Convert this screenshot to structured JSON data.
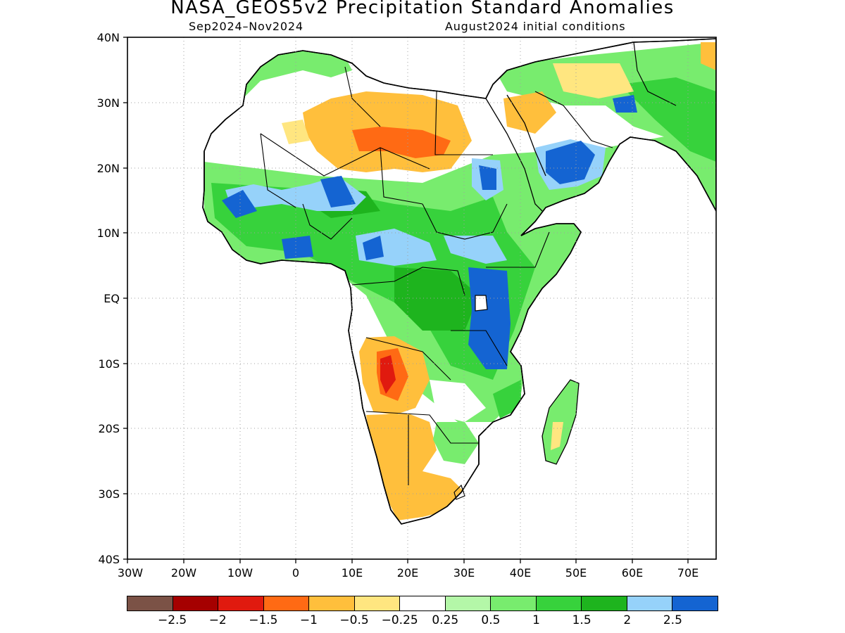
{
  "title": "NASA_GEOS5v2 Precipitation Standard Anomalies",
  "subtitle_left": "Sep2024–Nov2024",
  "subtitle_right": "August2024 initial conditions",
  "axes": {
    "lat_labels": [
      "40N",
      "30N",
      "20N",
      "10N",
      "EQ",
      "10S",
      "20S",
      "30S",
      "40S"
    ],
    "lon_labels": [
      "30W",
      "20W",
      "10W",
      "0",
      "10E",
      "20E",
      "30E",
      "40E",
      "50E",
      "60E",
      "70E"
    ],
    "lon_range": [
      -30,
      75
    ],
    "lat_range": [
      -40,
      40
    ],
    "grid": "dotted"
  },
  "colorbar": {
    "colors": [
      "#7b5246",
      "#a50000",
      "#e01a0f",
      "#ff6a14",
      "#ffbf3c",
      "#ffe680",
      "#ffffff",
      "#b4f7a8",
      "#78ec6e",
      "#37d23c",
      "#1eb41e",
      "#96d2fa",
      "#1464d2"
    ],
    "labels": [
      "−2.5",
      "−2",
      "−1.5",
      "−1",
      "−0.5",
      "−0.25",
      "0.25",
      "0.5",
      "1",
      "1.5",
      "2",
      "2.5"
    ]
  },
  "regions": [
    {
      "name": "north-africa-dry-zone",
      "level": "-1",
      "color": "#ff6a14"
    },
    {
      "name": "sahara-below-normal",
      "level": "-0.5",
      "color": "#ffbf3c"
    },
    {
      "name": "sahel-wet-zone",
      "level": "1.5",
      "color": "#37d23c"
    },
    {
      "name": "sahel-very-wet",
      "level": "2.5",
      "color": "#1464d2"
    },
    {
      "name": "east-africa-very-wet",
      "level": "2.5",
      "color": "#1464d2"
    },
    {
      "name": "arabia-very-wet",
      "level": "2.5",
      "color": "#1464d2"
    },
    {
      "name": "angola-dry",
      "level": "-1.5",
      "color": "#e01a0f"
    },
    {
      "name": "southern-africa-dry",
      "level": "-0.5",
      "color": "#ffbf3c"
    }
  ]
}
